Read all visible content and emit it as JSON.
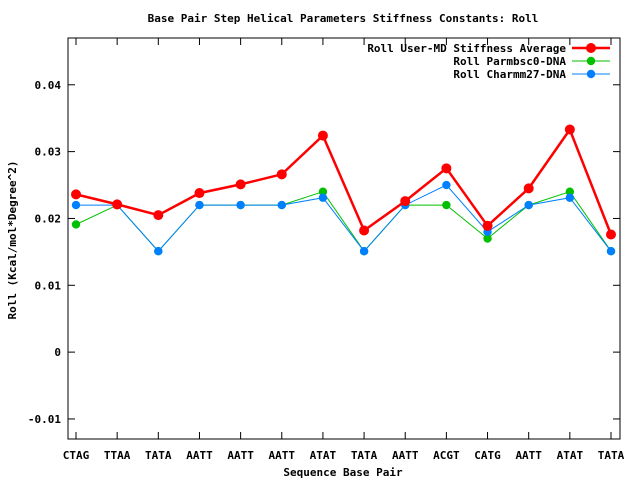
{
  "chart_data": {
    "type": "line",
    "title": "Base Pair Step Helical Parameters Stiffness Constants: Roll",
    "xlabel": "Sequence Base Pair",
    "ylabel": "Roll (Kcal/mol*Degree^2)",
    "categories": [
      "CTAG",
      "TTAA",
      "TATA",
      "AATT",
      "AATT",
      "AATT",
      "ATAT",
      "TATA",
      "AATT",
      "ACGT",
      "CATG",
      "AATT",
      "ATAT",
      "TATA"
    ],
    "ylim": [
      -0.013,
      0.047
    ],
    "yticks": [
      -0.01,
      0,
      0.01,
      0.02,
      0.03,
      0.04
    ],
    "ytick_labels": [
      "-0.01",
      "0",
      "0.01",
      "0.02",
      "0.03",
      "0.04"
    ],
    "legend_position": "top-right",
    "grid": false,
    "series": [
      {
        "name": "Roll User-MD Stiffness Average",
        "color": "#ff0000",
        "values": [
          0.0236,
          0.0221,
          0.0205,
          0.0238,
          0.0251,
          0.0266,
          0.0324,
          0.0182,
          0.0226,
          0.0275,
          0.0189,
          0.0245,
          0.0333,
          0.0176
        ]
      },
      {
        "name": "Roll Parmbsc0-DNA",
        "color": "#00c000",
        "values": [
          0.0191,
          0.022,
          0.0151,
          0.022,
          0.022,
          0.022,
          0.024,
          0.0151,
          0.022,
          0.022,
          0.017,
          0.022,
          0.024,
          0.0151
        ]
      },
      {
        "name": "Roll Charmm27-DNA",
        "color": "#0080ff",
        "values": [
          0.022,
          0.022,
          0.0151,
          0.022,
          0.022,
          0.022,
          0.0231,
          0.0151,
          0.022,
          0.025,
          0.018,
          0.022,
          0.0231,
          0.0151
        ]
      }
    ]
  }
}
